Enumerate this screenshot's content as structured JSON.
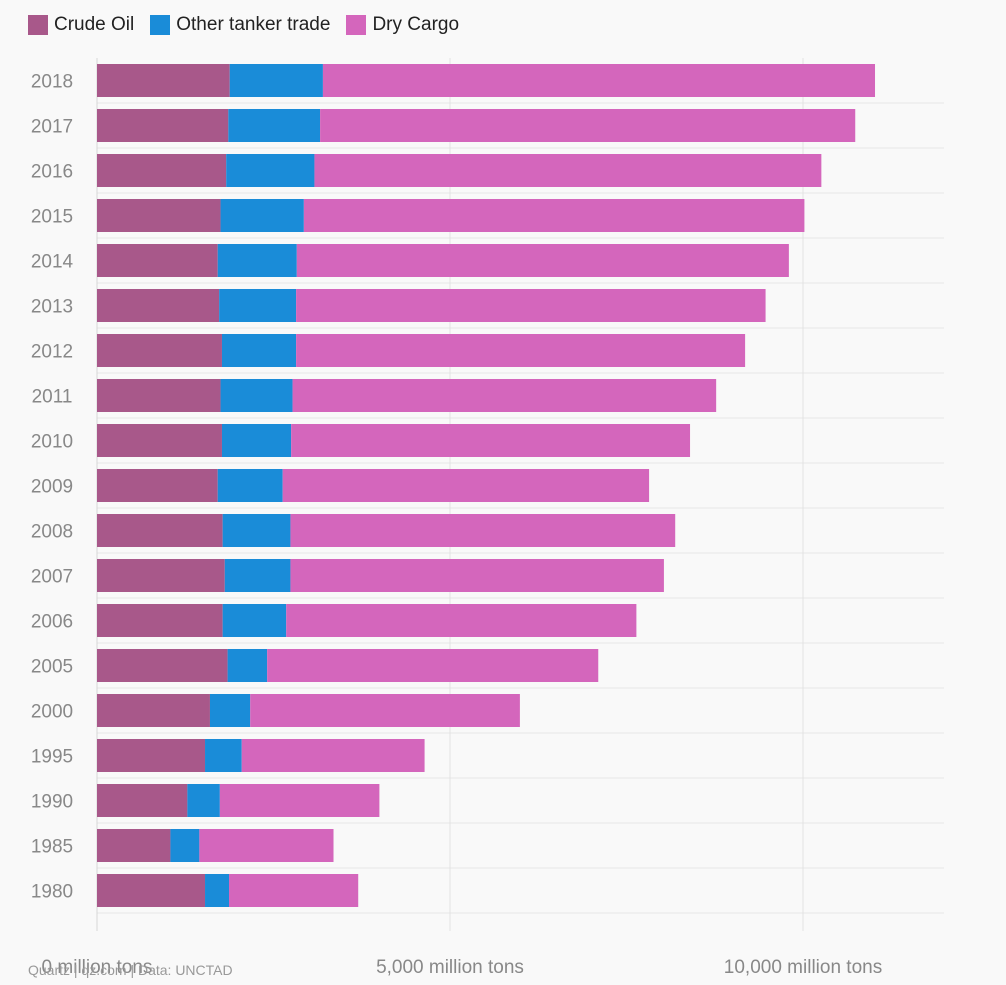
{
  "chart_data": {
    "type": "bar",
    "orientation": "horizontal",
    "stacked": true,
    "categories": [
      "2018",
      "2017",
      "2016",
      "2015",
      "2014",
      "2013",
      "2012",
      "2011",
      "2010",
      "2009",
      "2008",
      "2007",
      "2006",
      "2005",
      "2000",
      "1995",
      "1990",
      "1985",
      "1980"
    ],
    "series": [
      {
        "name": "Crude Oil",
        "color": "#a8588a",
        "values": [
          1880,
          1860,
          1830,
          1750,
          1710,
          1730,
          1770,
          1750,
          1770,
          1710,
          1780,
          1810,
          1780,
          1850,
          1600,
          1530,
          1280,
          1040,
          1530
        ]
      },
      {
        "name": "Other tanker trade",
        "color": "#1a8cd8",
        "values": [
          1320,
          1300,
          1250,
          1180,
          1120,
          1090,
          1050,
          1020,
          980,
          920,
          960,
          930,
          900,
          560,
          570,
          520,
          460,
          410,
          340
        ]
      },
      {
        "name": "Dry Cargo",
        "color": "#d466bc",
        "values": [
          7820,
          7580,
          7180,
          7090,
          6970,
          6650,
          6360,
          6000,
          5650,
          5190,
          5450,
          5290,
          4960,
          4690,
          3820,
          2590,
          2260,
          1900,
          1830
        ]
      }
    ],
    "x_ticks": [
      0,
      5000,
      10000
    ],
    "x_tick_labels": [
      "0 million tons",
      "5,000 million tons",
      "10,000 million tons"
    ],
    "xlim": [
      0,
      12000
    ],
    "grid": true,
    "legend_position": "top-left"
  },
  "source": "Quartz | qz.com | Data: UNCTAD"
}
